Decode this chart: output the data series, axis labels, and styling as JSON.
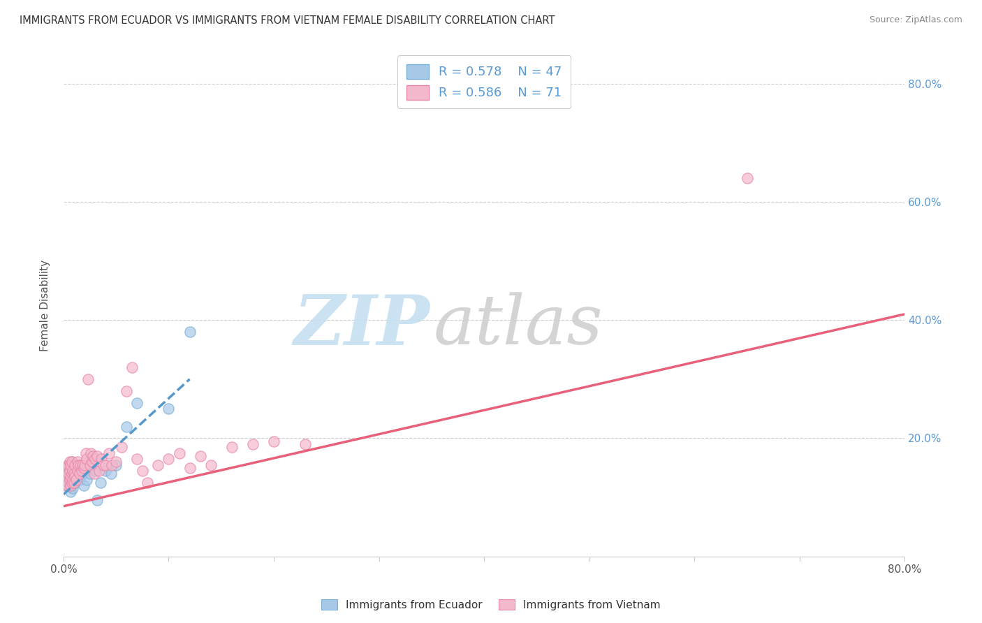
{
  "title": "IMMIGRANTS FROM ECUADOR VS IMMIGRANTS FROM VIETNAM FEMALE DISABILITY CORRELATION CHART",
  "source": "Source: ZipAtlas.com",
  "ylabel": "Female Disability",
  "xlim": [
    0.0,
    0.8
  ],
  "ylim": [
    0.0,
    0.85
  ],
  "ecuador_color": "#a8c8e8",
  "ecuador_edge_color": "#7aafd4",
  "vietnam_color": "#f4b8cc",
  "vietnam_edge_color": "#e888aa",
  "ecuador_line_color": "#5599cc",
  "vietnam_line_color": "#e8607a",
  "ecuador_R": 0.578,
  "ecuador_N": 47,
  "vietnam_R": 0.586,
  "vietnam_N": 71,
  "ecuador_scatter_x": [
    0.002,
    0.003,
    0.003,
    0.004,
    0.004,
    0.004,
    0.005,
    0.005,
    0.005,
    0.005,
    0.006,
    0.006,
    0.007,
    0.007,
    0.007,
    0.008,
    0.008,
    0.008,
    0.009,
    0.009,
    0.01,
    0.01,
    0.011,
    0.011,
    0.012,
    0.013,
    0.014,
    0.015,
    0.016,
    0.017,
    0.018,
    0.019,
    0.02,
    0.022,
    0.023,
    0.025,
    0.027,
    0.03,
    0.032,
    0.035,
    0.04,
    0.045,
    0.05,
    0.06,
    0.07,
    0.1,
    0.12
  ],
  "ecuador_scatter_y": [
    0.13,
    0.14,
    0.12,
    0.15,
    0.13,
    0.145,
    0.12,
    0.135,
    0.14,
    0.15,
    0.125,
    0.14,
    0.11,
    0.13,
    0.155,
    0.12,
    0.135,
    0.16,
    0.115,
    0.14,
    0.13,
    0.155,
    0.125,
    0.145,
    0.135,
    0.14,
    0.155,
    0.13,
    0.145,
    0.155,
    0.14,
    0.12,
    0.15,
    0.13,
    0.155,
    0.14,
    0.17,
    0.145,
    0.095,
    0.125,
    0.145,
    0.14,
    0.155,
    0.22,
    0.26,
    0.25,
    0.38
  ],
  "vietnam_scatter_x": [
    0.001,
    0.002,
    0.002,
    0.003,
    0.003,
    0.003,
    0.004,
    0.004,
    0.004,
    0.005,
    0.005,
    0.005,
    0.006,
    0.006,
    0.006,
    0.007,
    0.007,
    0.007,
    0.008,
    0.008,
    0.008,
    0.009,
    0.009,
    0.01,
    0.01,
    0.011,
    0.011,
    0.012,
    0.013,
    0.013,
    0.014,
    0.015,
    0.016,
    0.017,
    0.018,
    0.019,
    0.02,
    0.021,
    0.022,
    0.023,
    0.025,
    0.026,
    0.027,
    0.028,
    0.029,
    0.03,
    0.032,
    0.034,
    0.036,
    0.038,
    0.04,
    0.043,
    0.046,
    0.05,
    0.055,
    0.06,
    0.065,
    0.07,
    0.075,
    0.08,
    0.09,
    0.1,
    0.11,
    0.12,
    0.13,
    0.14,
    0.16,
    0.18,
    0.2,
    0.23,
    0.65
  ],
  "vietnam_scatter_y": [
    0.13,
    0.14,
    0.12,
    0.135,
    0.15,
    0.13,
    0.12,
    0.14,
    0.155,
    0.125,
    0.14,
    0.155,
    0.13,
    0.145,
    0.16,
    0.12,
    0.135,
    0.155,
    0.125,
    0.14,
    0.16,
    0.13,
    0.145,
    0.125,
    0.14,
    0.135,
    0.155,
    0.13,
    0.145,
    0.16,
    0.155,
    0.14,
    0.155,
    0.145,
    0.155,
    0.15,
    0.155,
    0.175,
    0.165,
    0.3,
    0.155,
    0.175,
    0.16,
    0.17,
    0.14,
    0.165,
    0.17,
    0.145,
    0.165,
    0.155,
    0.155,
    0.175,
    0.155,
    0.16,
    0.185,
    0.28,
    0.32,
    0.165,
    0.145,
    0.125,
    0.155,
    0.165,
    0.175,
    0.15,
    0.17,
    0.155,
    0.185,
    0.19,
    0.195,
    0.19,
    0.64
  ],
  "ecuador_line_x": [
    0.0,
    0.12
  ],
  "ecuador_line_y_start": 0.105,
  "ecuador_line_y_end": 0.3,
  "vietnam_line_x": [
    0.0,
    0.8
  ],
  "vietnam_line_y_start": 0.085,
  "vietnam_line_y_end": 0.41,
  "grid_color": "#cccccc",
  "tick_color": "#999999",
  "right_label_color": "#5B9BD5",
  "watermark_zip_color": "#c5dff0",
  "watermark_atlas_color": "#d0d0d0"
}
